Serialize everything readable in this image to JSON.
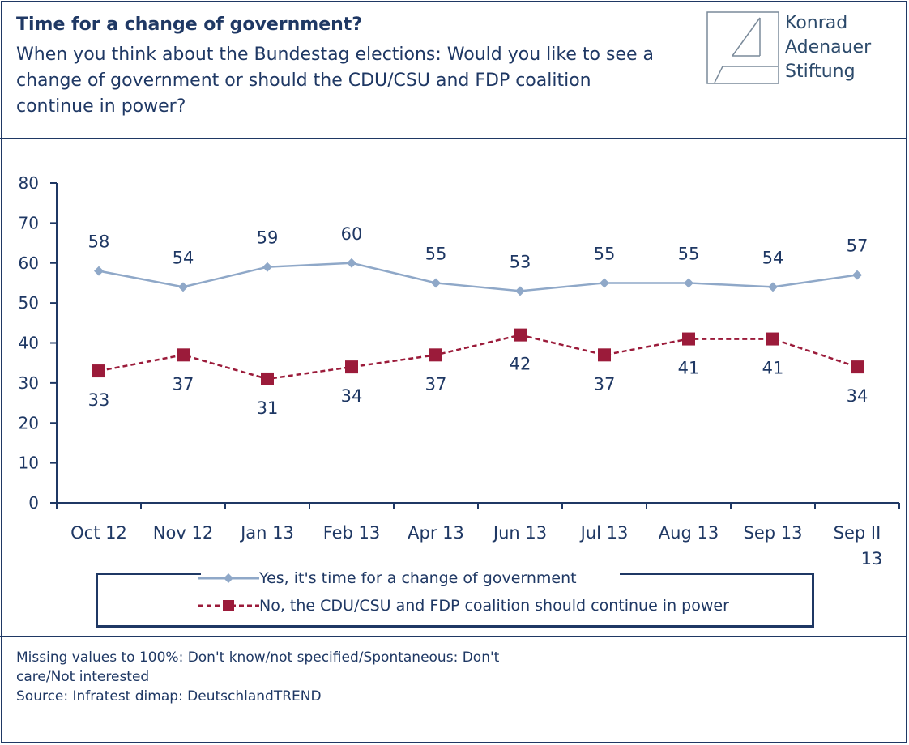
{
  "header": {
    "title": "Time for a change of government?",
    "question": "When you think about the Bundestag elections: Would you like to see a change of government or should the CDU/CSU and FDP coalition continue in power?"
  },
  "logo": {
    "line1": "Konrad",
    "line2": "Adenauer",
    "line3": "Stiftung"
  },
  "footnote": {
    "line1": "Missing values to 100%: Don't know/not specified/Spontaneous: Don't",
    "line2": "care/Not interested",
    "line3": "Source: Infratest dimap: DeutschlandTREND"
  },
  "chart_data": {
    "type": "line",
    "categories": [
      "Oct 12",
      "Nov 12",
      "Jan 13",
      "Feb 13",
      "Apr 13",
      "Jun 13",
      "Jul 13",
      "Aug 13",
      "Sep 13",
      "Sep II 13"
    ],
    "series": [
      {
        "name": "Yes, it's time for a change of government",
        "values": [
          58,
          54,
          59,
          60,
          55,
          53,
          55,
          55,
          54,
          57
        ],
        "color": "#8fa8c8",
        "marker": "diamond"
      },
      {
        "name": "No, the CDU/CSU and FDP coalition should continue in power",
        "values": [
          33,
          37,
          31,
          34,
          37,
          42,
          37,
          41,
          41,
          34
        ],
        "color": "#9b1b3a",
        "marker": "square",
        "dashed": true
      }
    ],
    "ylim": [
      0,
      80
    ],
    "yticks": [
      0,
      10,
      20,
      30,
      40,
      50,
      60,
      70,
      80
    ],
    "xlabel": "",
    "ylabel": "",
    "grid": false,
    "legend": "bottom"
  }
}
